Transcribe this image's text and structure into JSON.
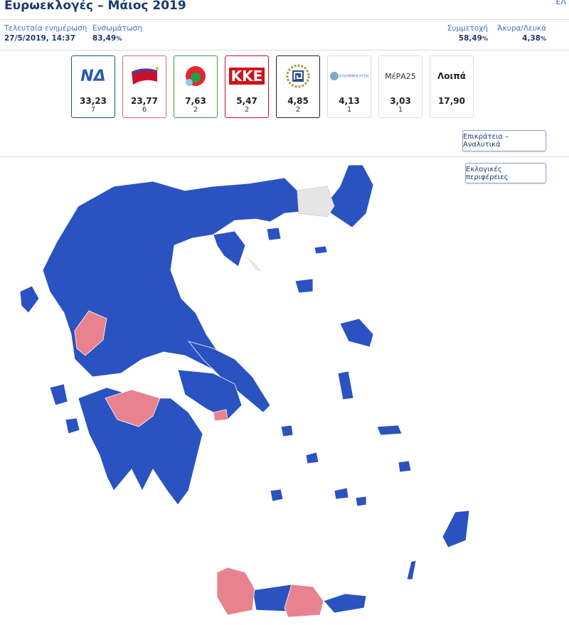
{
  "header": {
    "title": "Ευρωεκλογές – Μάιος 2019",
    "language": "ΕΛ"
  },
  "stats": {
    "last_update": {
      "label": "Τελευταία ενημέρωση",
      "value": "27/5/2019, 14:37"
    },
    "counted": {
      "label": "Ενσωμάτωση",
      "value": "83,49",
      "unit": "%"
    },
    "turnout": {
      "label": "Συμμετοχή",
      "value": "58,49",
      "unit": "%"
    },
    "invalid": {
      "label": "Άκυρα/Λευκά",
      "value": "4,38",
      "unit": "%"
    }
  },
  "parties": [
    {
      "name": "ΝΔ",
      "logo": "ΝΔ",
      "pct": "33,23",
      "seats": "7",
      "color": "#1d4f9c"
    },
    {
      "name": "ΣΥΡΙΖΑ",
      "pct": "23,77",
      "seats": "6",
      "color": "#d36b7a"
    },
    {
      "name": "ΚΙΝΑΛ",
      "pct": "7,63",
      "seats": "2",
      "color": "#3a9b4a"
    },
    {
      "name": "ΚΚΕ",
      "logo": "ΚΚΕ",
      "pct": "5,47",
      "seats": "2",
      "color": "#c8102e"
    },
    {
      "name": "Χρυσή Αυγή",
      "pct": "4,85",
      "seats": "2",
      "color": "#222222"
    },
    {
      "name": "Ελληνική Λύση",
      "logo": "ΕΛΛΗΝΙΚΗ ΛΥΣΗ",
      "pct": "4,13",
      "seats": "1",
      "color": "#dddddd"
    },
    {
      "name": "ΜέΡΑ25",
      "logo": "ΜέΡΑ25",
      "pct": "3,03",
      "seats": "1",
      "color": "#dddddd"
    },
    {
      "name": "Λοιπά",
      "logo": "Λοιπά",
      "pct": "17,90",
      "color": "#dddddd"
    }
  ],
  "buttons": {
    "national_detail": "Επικράτεια – Αναλυτικά",
    "districts": "Εκλογικές περιφέρειες"
  },
  "map": {
    "colors": {
      "nd": "#2a52c0",
      "syriza": "#e8828f",
      "nodata": "#e6e6e6"
    }
  }
}
